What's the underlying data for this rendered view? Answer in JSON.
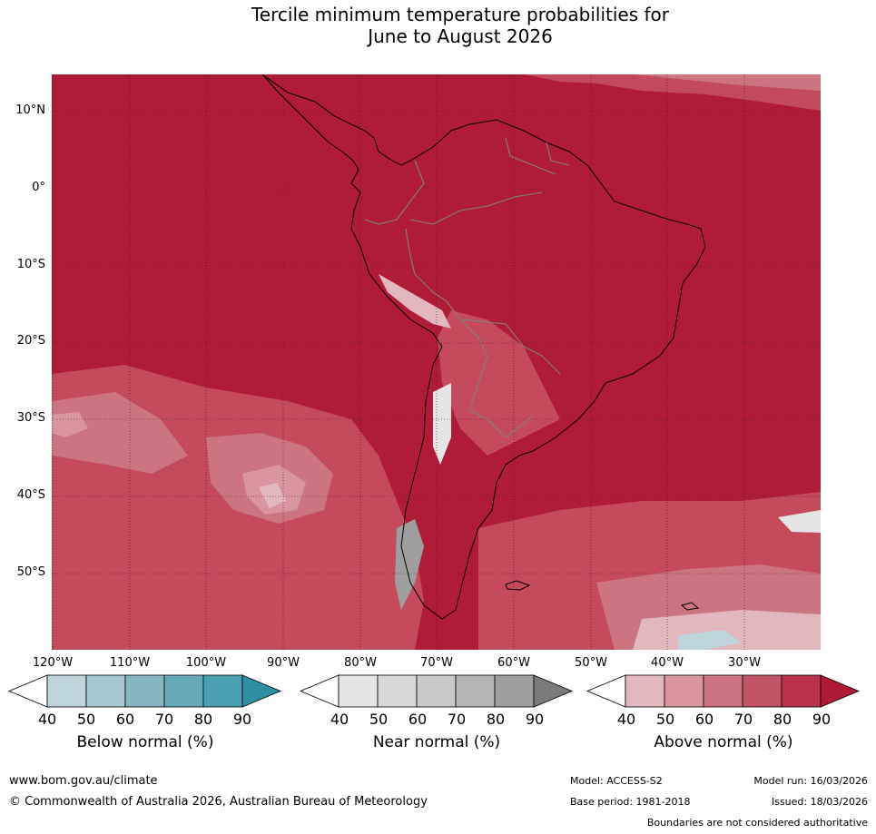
{
  "title_line1": "Tercile minimum temperature probabilities for",
  "title_line2": "June to August 2026",
  "lat_labels": [
    "10°N",
    "0°",
    "10°S",
    "20°S",
    "30°S",
    "40°S",
    "50°S"
  ],
  "lon_labels": [
    "120°W",
    "110°W",
    "100°W",
    "90°W",
    "80°W",
    "70°W",
    "60°W",
    "50°W",
    "40°W",
    "30°W"
  ],
  "colorbars": [
    {
      "label": "Below normal (%)",
      "ticks": [
        "40",
        "50",
        "60",
        "70",
        "80",
        "90"
      ],
      "colors": [
        "#ffffff",
        "#bfd5dc",
        "#a5c7cf",
        "#87b6c2",
        "#66aaba",
        "#4aa0b1",
        "#2f8fa2"
      ]
    },
    {
      "label": "Near normal (%)",
      "ticks": [
        "40",
        "50",
        "60",
        "70",
        "80",
        "90"
      ],
      "colors": [
        "#ffffff",
        "#e5e5e5",
        "#d8d8d8",
        "#c9c9c9",
        "#b4b4b4",
        "#9f9f9f",
        "#7a7a7a"
      ]
    },
    {
      "label": "Above normal (%)",
      "ticks": [
        "40",
        "50",
        "60",
        "70",
        "80",
        "90"
      ],
      "colors": [
        "#ffffff",
        "#e2b7bd",
        "#d9969f",
        "#cc7480",
        "#c25565",
        "#b8334a",
        "#ae1a36"
      ]
    }
  ],
  "footer": {
    "website": "www.bom.gov.au/climate",
    "copyright": "© Commonwealth of Australia 2026, Australian Bureau of Meteorology",
    "model": "Model: ACCESS-S2",
    "model_run": "Model run: 16/03/2026",
    "base_period": "Base period: 1981-2018",
    "issued": "Issued: 18/03/2026",
    "disclaimer": "Boundaries are not considered authoritative"
  },
  "colors": {
    "dominant": "#b01c38",
    "ocean_south": "#c44a5c"
  }
}
